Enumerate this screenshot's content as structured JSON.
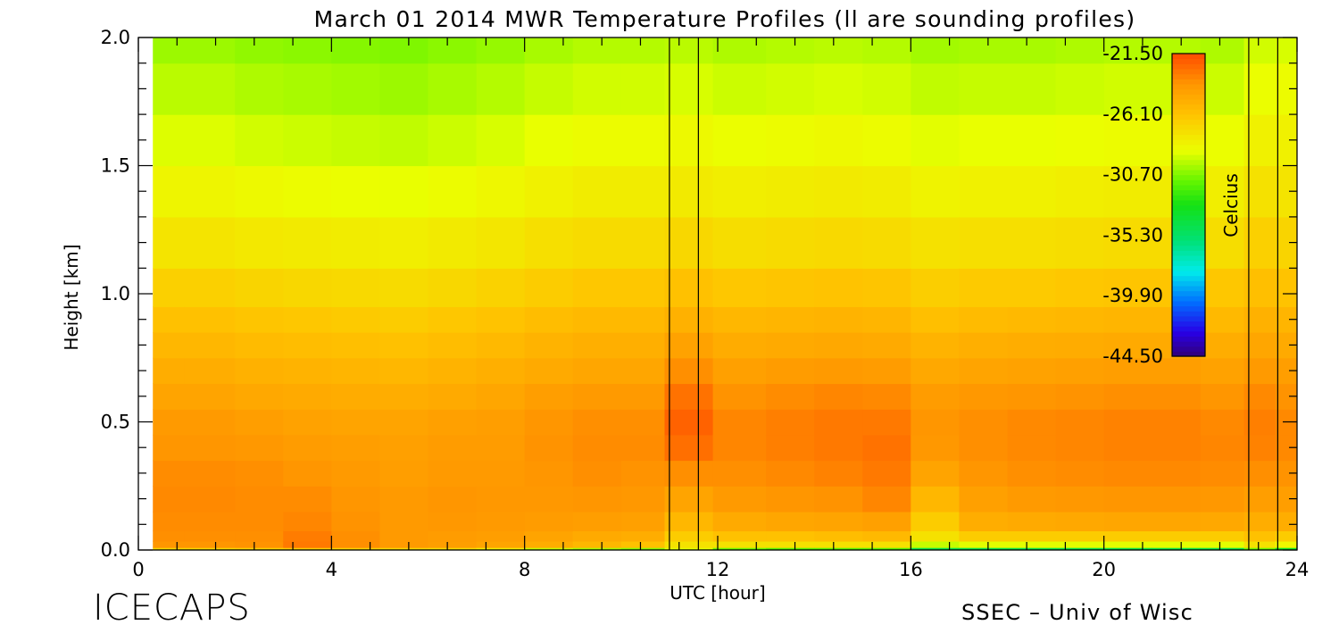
{
  "chart_data": {
    "type": "heatmap",
    "title": "March 01 2014 MWR Temperature Profiles (ll are sounding profiles)",
    "xlabel": "UTC [hour]",
    "ylabel": "Height [km]",
    "xlim": [
      0,
      24
    ],
    "ylim": [
      0,
      2.0
    ],
    "x_ticks": [
      "0",
      "4",
      "8",
      "12",
      "16",
      "20",
      "24"
    ],
    "y_ticks": [
      "0.0",
      "0.5",
      "1.0",
      "1.5",
      "2.0"
    ],
    "colorbar": {
      "label": "Celcius",
      "ticks": [
        "-21.50",
        "-26.10",
        "-30.70",
        "-35.30",
        "-39.90",
        "-44.50"
      ],
      "range": [
        -44.5,
        -21.5
      ]
    },
    "sounding_times_hours": [
      11.0,
      11.6,
      23.0,
      23.6
    ],
    "time_hours": [
      0.4,
      1.5,
      2.5,
      3.5,
      4.5,
      5.5,
      6.5,
      7.5,
      8.5,
      9.5,
      10.5,
      11.3,
      12.5,
      13.5,
      14.5,
      15.5,
      16.5,
      17.5,
      18.5,
      19.5,
      20.5,
      21.5,
      22.5,
      23.3,
      23.8
    ],
    "heights_km": [
      0.0,
      0.02,
      0.05,
      0.1,
      0.2,
      0.3,
      0.4,
      0.5,
      0.6,
      0.7,
      0.8,
      0.9,
      1.0,
      1.2,
      1.4,
      1.6,
      1.8,
      2.0
    ],
    "temperature_c": [
      [
        -27.0,
        -23.8,
        -23.6,
        -23.5,
        -23.4,
        -23.5,
        -23.8,
        -24.0,
        -24.5,
        -25.0,
        -25.5,
        -26.0,
        -26.7,
        -27.6,
        -28.4,
        -29.1,
        -29.7,
        -30.2
      ],
      [
        -27.0,
        -23.8,
        -23.6,
        -23.5,
        -23.4,
        -23.5,
        -23.8,
        -24.0,
        -24.5,
        -25.0,
        -25.5,
        -26.0,
        -26.7,
        -27.6,
        -28.4,
        -29.1,
        -29.7,
        -30.2
      ],
      [
        -26.8,
        -23.7,
        -23.6,
        -23.5,
        -23.5,
        -23.6,
        -23.9,
        -24.2,
        -24.7,
        -25.2,
        -25.7,
        -26.2,
        -26.9,
        -27.8,
        -28.6,
        -29.3,
        -29.9,
        -30.4
      ],
      [
        -26.5,
        -22.9,
        -23.0,
        -23.3,
        -23.5,
        -23.8,
        -24.1,
        -24.4,
        -24.8,
        -25.3,
        -25.8,
        -26.3,
        -27.0,
        -27.9,
        -28.7,
        -29.4,
        -30.0,
        -30.5
      ],
      [
        -26.8,
        -23.6,
        -23.6,
        -23.7,
        -23.8,
        -24.0,
        -24.2,
        -24.5,
        -24.9,
        -25.4,
        -25.9,
        -26.4,
        -27.1,
        -28.0,
        -28.8,
        -29.5,
        -30.1,
        -30.6
      ],
      [
        -27.0,
        -24.0,
        -24.0,
        -24.0,
        -24.0,
        -24.2,
        -24.3,
        -24.5,
        -25.0,
        -25.5,
        -26.0,
        -26.5,
        -27.2,
        -28.1,
        -28.9,
        -29.6,
        -30.2,
        -30.7
      ],
      [
        -27.2,
        -24.2,
        -24.1,
        -23.9,
        -23.8,
        -24.0,
        -24.1,
        -24.3,
        -24.8,
        -25.3,
        -25.8,
        -26.3,
        -27.0,
        -27.9,
        -28.7,
        -29.4,
        -30.0,
        -30.5
      ],
      [
        -28.0,
        -24.5,
        -24.2,
        -24.0,
        -23.9,
        -24.0,
        -24.1,
        -24.2,
        -24.6,
        -25.1,
        -25.6,
        -26.1,
        -26.8,
        -27.7,
        -28.5,
        -29.2,
        -29.8,
        -30.3
      ],
      [
        -29.5,
        -25.0,
        -24.5,
        -24.1,
        -23.9,
        -23.8,
        -23.7,
        -23.8,
        -24.2,
        -24.8,
        -25.3,
        -25.8,
        -26.5,
        -27.4,
        -28.2,
        -28.9,
        -29.5,
        -30.0
      ],
      [
        -30.0,
        -25.5,
        -24.8,
        -24.2,
        -23.8,
        -23.6,
        -23.5,
        -23.6,
        -24.0,
        -24.6,
        -25.1,
        -25.6,
        -26.3,
        -27.2,
        -28.0,
        -28.7,
        -29.3,
        -29.8
      ],
      [
        -30.5,
        -26.0,
        -25.0,
        -24.3,
        -23.9,
        -23.7,
        -23.5,
        -23.6,
        -24.0,
        -24.6,
        -25.1,
        -25.6,
        -26.3,
        -27.2,
        -28.0,
        -28.7,
        -29.3,
        -29.8
      ],
      [
        -29.0,
        -27.5,
        -26.5,
        -25.5,
        -24.5,
        -23.6,
        -22.6,
        -22.2,
        -22.7,
        -23.6,
        -24.4,
        -25.2,
        -26.0,
        -27.0,
        -27.9,
        -28.6,
        -29.2,
        -29.7
      ],
      [
        -31.0,
        -27.5,
        -26.0,
        -24.8,
        -24.0,
        -23.6,
        -23.3,
        -23.3,
        -23.7,
        -24.3,
        -24.9,
        -25.5,
        -26.3,
        -27.3,
        -28.1,
        -28.8,
        -29.4,
        -29.9
      ],
      [
        -31.5,
        -27.5,
        -26.0,
        -24.6,
        -23.8,
        -23.4,
        -23.1,
        -23.1,
        -23.5,
        -24.1,
        -24.8,
        -25.4,
        -26.2,
        -27.2,
        -28.0,
        -28.7,
        -29.3,
        -29.8
      ],
      [
        -31.5,
        -27.5,
        -25.8,
        -24.5,
        -23.7,
        -23.2,
        -22.9,
        -22.9,
        -23.3,
        -24.0,
        -24.7,
        -25.3,
        -26.1,
        -27.1,
        -27.9,
        -28.6,
        -29.2,
        -29.7
      ],
      [
        -31.5,
        -27.5,
        -25.6,
        -24.3,
        -23.3,
        -22.9,
        -22.7,
        -22.9,
        -23.4,
        -24.1,
        -24.8,
        -25.4,
        -26.2,
        -27.2,
        -28.0,
        -28.7,
        -29.3,
        -29.8
      ],
      [
        -34.5,
        -29.5,
        -27.5,
        -26.5,
        -25.5,
        -24.5,
        -23.9,
        -23.8,
        -24.1,
        -24.7,
        -25.3,
        -25.9,
        -26.6,
        -27.5,
        -28.3,
        -29.0,
        -29.6,
        -30.1
      ],
      [
        -34.5,
        -29.0,
        -26.5,
        -25.0,
        -24.3,
        -23.8,
        -23.6,
        -23.6,
        -23.9,
        -24.5,
        -25.1,
        -25.7,
        -26.4,
        -27.4,
        -28.2,
        -28.9,
        -29.5,
        -30.0
      ],
      [
        -34.5,
        -29.0,
        -26.5,
        -24.8,
        -24.0,
        -23.6,
        -23.4,
        -23.4,
        -23.8,
        -24.4,
        -25.0,
        -25.6,
        -26.4,
        -27.4,
        -28.2,
        -28.9,
        -29.5,
        -30.0
      ],
      [
        -34.5,
        -29.0,
        -26.5,
        -24.7,
        -23.9,
        -23.5,
        -23.3,
        -23.3,
        -23.7,
        -24.3,
        -24.9,
        -25.5,
        -26.3,
        -27.3,
        -28.1,
        -28.8,
        -29.4,
        -29.9
      ],
      [
        -34.5,
        -29.0,
        -26.5,
        -24.6,
        -23.8,
        -23.4,
        -23.2,
        -23.2,
        -23.6,
        -24.2,
        -24.8,
        -25.4,
        -26.2,
        -27.2,
        -28.0,
        -28.7,
        -29.3,
        -29.8
      ],
      [
        -34.5,
        -29.0,
        -26.5,
        -24.6,
        -23.8,
        -23.4,
        -23.2,
        -23.2,
        -23.6,
        -24.2,
        -24.8,
        -25.4,
        -26.2,
        -27.2,
        -28.0,
        -28.7,
        -29.3,
        -29.8
      ],
      [
        -34.5,
        -29.0,
        -26.5,
        -24.7,
        -23.9,
        -23.5,
        -23.3,
        -23.4,
        -23.8,
        -24.4,
        -25.0,
        -25.6,
        -26.3,
        -27.3,
        -28.1,
        -28.8,
        -29.4,
        -29.9
      ],
      [
        -31.0,
        -27.5,
        -26.0,
        -25.0,
        -24.2,
        -23.6,
        -23.2,
        -23.1,
        -23.4,
        -24.0,
        -24.6,
        -25.2,
        -25.9,
        -26.7,
        -27.5,
        -28.2,
        -28.8,
        -29.3
      ],
      [
        -33.5,
        -28.5,
        -26.5,
        -25.0,
        -24.2,
        -23.7,
        -23.4,
        -23.4,
        -23.7,
        -24.2,
        -24.8,
        -25.4,
        -26.1,
        -26.9,
        -27.6,
        -28.2,
        -28.7,
        -29.2
      ]
    ]
  },
  "footer": {
    "left_text": "ICECAPS",
    "right_text": "SSEC – Univ of Wisc"
  }
}
